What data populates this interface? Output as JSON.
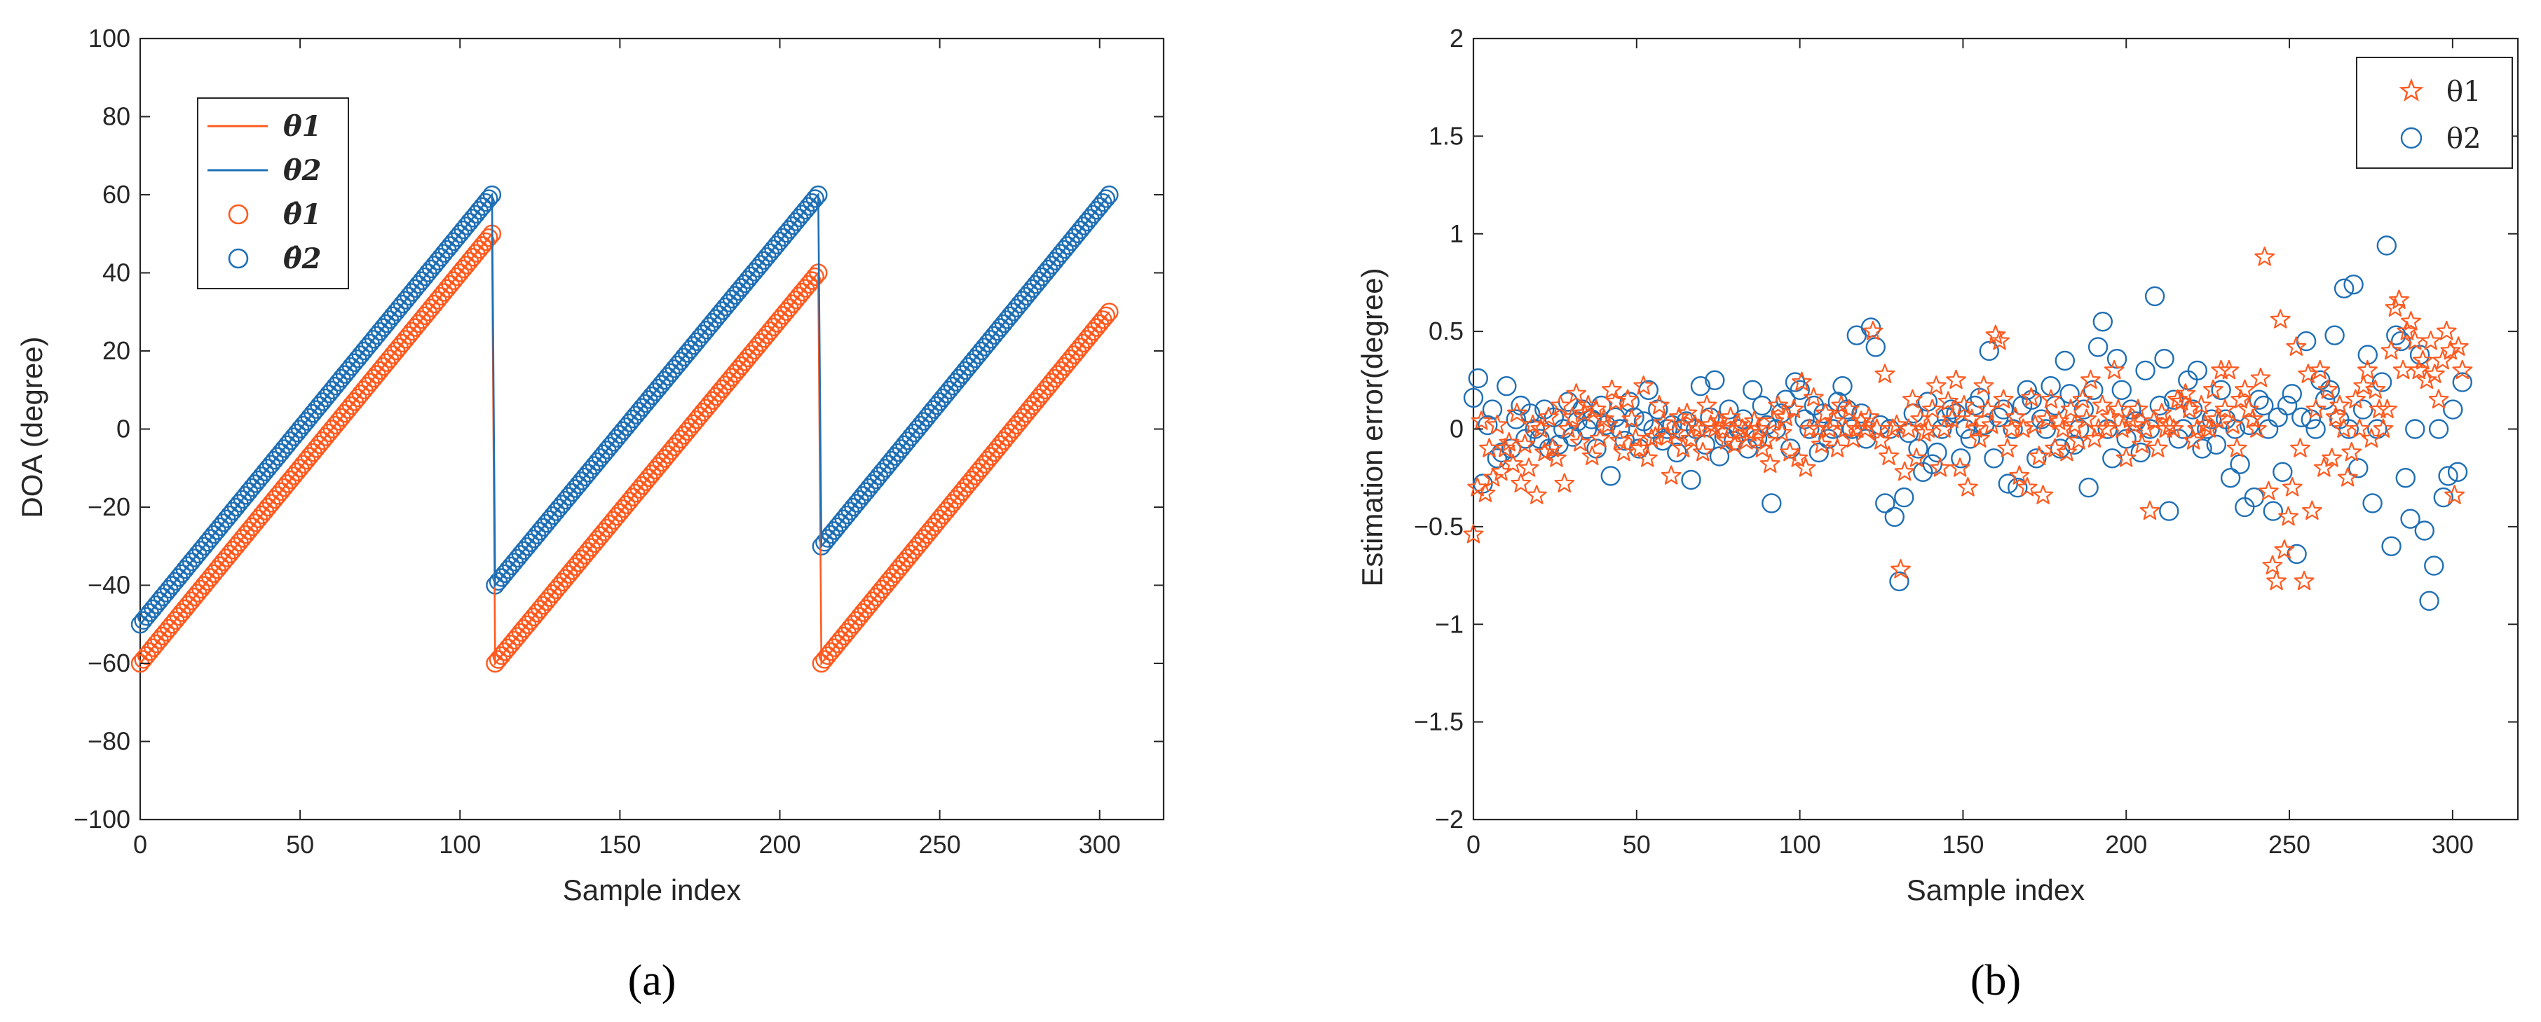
{
  "chart_data": [
    {
      "panel_label": "(a)",
      "type": "line+scatter",
      "xlabel": "Sample index",
      "ylabel": "DOA (degree)",
      "xlim": [
        0,
        320
      ],
      "ylim": [
        -100,
        100
      ],
      "xticks": [
        0,
        50,
        100,
        150,
        200,
        250,
        300
      ],
      "yticks": [
        -100,
        -80,
        -60,
        -40,
        -20,
        0,
        20,
        40,
        60,
        80,
        100
      ],
      "legend_position": "top-left",
      "colors": {
        "theta1": "#ff5a1f",
        "theta2": "#1f6fb5"
      },
      "series": [
        {
          "name": "θ1",
          "style": "line",
          "segments": [
            {
              "x": [
                0,
                110
              ],
              "y": [
                -60,
                50
              ]
            },
            {
              "x": [
                111,
                212
              ],
              "y": [
                -60,
                40
              ]
            },
            {
              "x": [
                213,
                303
              ],
              "y": [
                -60,
                30
              ]
            }
          ]
        },
        {
          "name": "θ2",
          "style": "line",
          "segments": [
            {
              "x": [
                0,
                110
              ],
              "y": [
                -50,
                60
              ]
            },
            {
              "x": [
                111,
                212
              ],
              "y": [
                -40,
                60
              ]
            },
            {
              "x": [
                213,
                303
              ],
              "y": [
                -30,
                60
              ]
            }
          ]
        },
        {
          "name": "θ̂1",
          "style": "circle-markers",
          "segments": [
            {
              "x": [
                0,
                110
              ],
              "y": [
                -60,
                50
              ]
            },
            {
              "x": [
                111,
                212
              ],
              "y": [
                -60,
                40
              ]
            },
            {
              "x": [
                213,
                303
              ],
              "y": [
                -60,
                30
              ]
            }
          ]
        },
        {
          "name": "θ̂2",
          "style": "circle-markers",
          "segments": [
            {
              "x": [
                0,
                110
              ],
              "y": [
                -50,
                60
              ]
            },
            {
              "x": [
                111,
                212
              ],
              "y": [
                -40,
                60
              ]
            },
            {
              "x": [
                213,
                303
              ],
              "y": [
                -30,
                60
              ]
            }
          ]
        }
      ]
    },
    {
      "panel_label": "(b)",
      "type": "scatter",
      "xlabel": "Sample index",
      "ylabel": "Estimation error(degree)",
      "xlim": [
        0,
        320
      ],
      "ylim": [
        -2,
        2
      ],
      "xticks": [
        0,
        50,
        100,
        150,
        200,
        250,
        300
      ],
      "yticks": [
        -2,
        -1.5,
        -1,
        -0.5,
        0,
        0.5,
        1,
        1.5,
        2
      ],
      "ytick_labels": [
        "-2",
        "-1.5",
        "-1",
        "-0.5",
        "0",
        "0.5",
        "1",
        "1.5",
        "2"
      ],
      "legend_position": "top-right",
      "colors": {
        "theta1": "#ff5a1f",
        "theta2": "#1f6fb5"
      },
      "series": [
        {
          "name": "θ1",
          "marker": "star",
          "y": [
            -0.54,
            -0.3,
            0.04,
            -0.33,
            -0.1,
            -0.25,
            0.02,
            -0.22,
            -0.1,
            -0.07,
            -0.18,
            0.08,
            -0.28,
            -0.08,
            -0.2,
            0.02,
            -0.34,
            0.0,
            -0.12,
            0.06,
            -0.1,
            -0.15,
            0.12,
            -0.28,
            0.0,
            0.06,
            0.18,
            -0.07,
            0.08,
            0.12,
            -0.14,
            0.1,
            -0.05,
            0.05,
            0.02,
            0.2,
            0.14,
            -0.06,
            -0.12,
            0.15,
            0.05,
            -0.05,
            -0.1,
            0.22,
            -0.15,
            -0.05,
            -0.04,
            0.12,
            0.03,
            -0.04,
            -0.24,
            -0.02,
            0.06,
            -0.1,
            0.08,
            -0.05,
            0.02,
            0.0,
            -0.12,
            0.12,
            0.02,
            0.0,
            0.04,
            0.0,
            -0.06,
            0.06,
            -0.08,
            0.02,
            0.0,
            -0.06,
            -0.02,
            0.04,
            0.0,
            -0.1,
            -0.06,
            -0.18,
            0.04,
            0.12,
            -0.02,
            0.06,
            -0.12,
            0.1,
            -0.15,
            0.24,
            -0.2,
            0.0,
            0.16,
            0.0,
            -0.08,
            0.08,
            0.0,
            0.04,
            -0.1,
            0.12,
            0.0,
            0.1,
            -0.05,
            0.0,
            0.04,
            0.0,
            0.06,
            0.5,
            0.0,
            -0.06,
            0.28,
            -0.14,
            0.0,
            0.02,
            -0.72,
            -0.22,
            0.0,
            0.15,
            -0.15,
            0.05,
            -0.02,
            0.0,
            0.1,
            0.22,
            -0.2,
            0.0,
            0.14,
            0.05,
            0.25,
            -0.2,
            0.12,
            -0.3,
            0.05,
            0.0,
            -0.05,
            0.22,
            0.1,
            0.02,
            0.48,
            0.45,
            0.15,
            -0.1,
            0.0,
            0.06,
            -0.24,
            0.0,
            -0.3,
            0.16,
            0.02,
            -0.14,
            -0.34,
            0.05,
            0.15,
            -0.1,
            0.04,
            0.0,
            -0.12,
            0.1,
            0.02,
            -0.06,
            0.15,
            0.05,
            0.25,
            -0.05,
            0.0,
            0.12,
            0.0,
            0.06,
            0.3,
            0.1,
            0.0,
            -0.15,
            0.05,
            0.02,
            0.1,
            -0.08,
            0.0,
            -0.42,
            0.04,
            -0.1,
            0.08,
            0.0,
            0.02,
            0.0,
            0.15,
            0.14,
            0.18,
            0.1,
            -0.06,
            0.0,
            0.12,
            0.02,
            0.0,
            0.2,
            0.05,
            0.3,
            0.1,
            0.3,
            0.02,
            -0.1,
            0.15,
            0.2,
            0.1,
            0.05,
            0.0,
            0.26,
            0.88,
            -0.32,
            -0.7,
            -0.78,
            0.56,
            -0.62,
            -0.45,
            -0.3,
            0.42,
            -0.1,
            -0.78,
            0.28,
            -0.42,
            0.1,
            0.3,
            -0.2,
            0.2,
            -0.15,
            0.06,
            0.12,
            0.0,
            -0.25,
            -0.12,
            0.15,
            0.0,
            0.22,
            0.3,
            -0.05,
            0.2,
            0.1,
            0.0,
            0.1,
            0.4,
            0.62,
            0.66,
            0.3,
            0.5,
            0.55,
            0.45,
            0.3,
            0.35,
            0.25,
            0.45,
            0.28,
            0.15,
            0.35,
            0.5,
            0.4,
            -0.34,
            0.42,
            0.3
          ]
        },
        {
          "name": "θ2",
          "marker": "circle",
          "y": [
            0.16,
            0.26,
            -0.28,
            0.02,
            0.1,
            -0.15,
            -0.12,
            0.22,
            -0.1,
            0.05,
            0.12,
            -0.05,
            0.08,
            0.0,
            -0.05,
            0.1,
            -0.1,
            0.06,
            -0.08,
            0.0,
            0.14,
            -0.04,
            0.04,
            0.1,
            0.0,
            0.05,
            -0.1,
            0.12,
            0.02,
            -0.24,
            0.06,
            0.0,
            -0.06,
            0.14,
            0.06,
            -0.1,
            0.04,
            0.2,
            0.0,
            0.1,
            -0.06,
            0.0,
            0.02,
            -0.12,
            0.0,
            0.04,
            -0.26,
            0.0,
            0.22,
            -0.08,
            0.06,
            0.25,
            -0.14,
            -0.04,
            0.1,
            -0.06,
            0.0,
            0.05,
            -0.1,
            0.2,
            -0.05,
            0.12,
            0.02,
            -0.38,
            0.0,
            0.08,
            0.15,
            -0.1,
            0.24,
            0.2,
            0.05,
            0.0,
            0.12,
            -0.12,
            0.08,
            -0.05,
            0.0,
            0.14,
            0.22,
            0.1,
            0.0,
            0.48,
            0.08,
            -0.05,
            0.52,
            0.42,
            0.02,
            -0.38,
            0.0,
            -0.45,
            -0.78,
            -0.35,
            -0.02,
            0.08,
            -0.1,
            -0.22,
            0.14,
            -0.18,
            -0.12,
            0.0,
            0.06,
            0.1,
            0.08,
            -0.15,
            0.0,
            -0.05,
            0.12,
            0.16,
            0.02,
            0.4,
            -0.15,
            0.06,
            0.1,
            -0.28,
            0.0,
            -0.3,
            0.12,
            0.2,
            0.15,
            -0.15,
            0.05,
            0.0,
            0.22,
            0.12,
            -0.1,
            0.35,
            0.18,
            -0.08,
            0.0,
            0.1,
            -0.3,
            0.2,
            0.42,
            0.55,
            0.0,
            -0.15,
            0.36,
            0.2,
            -0.05,
            0.1,
            0.04,
            -0.12,
            0.3,
            0.0,
            0.68,
            0.12,
            0.36,
            -0.42,
            0.15,
            -0.05,
            0.0,
            0.25,
            0.1,
            0.3,
            -0.1,
            0.0,
            0.05,
            -0.08,
            0.2,
            0.05,
            -0.25,
            0.0,
            -0.18,
            -0.4,
            0.02,
            -0.35,
            0.15,
            0.12,
            0.0,
            -0.42,
            0.06,
            -0.22,
            0.12,
            0.18,
            -0.64,
            0.06,
            0.45,
            0.05,
            0.0,
            0.25,
            0.15,
            0.2,
            0.48,
            0.05,
            0.72,
            0.0,
            0.74,
            -0.2,
            0.1,
            0.38,
            -0.38,
            0.0,
            0.24,
            0.94,
            -0.6,
            0.48,
            0.45,
            -0.25,
            -0.46,
            0.0,
            0.38,
            -0.52,
            -0.88,
            -0.7,
            0.0,
            -0.35,
            -0.24,
            0.1,
            -0.22,
            0.24
          ]
        }
      ]
    }
  ]
}
